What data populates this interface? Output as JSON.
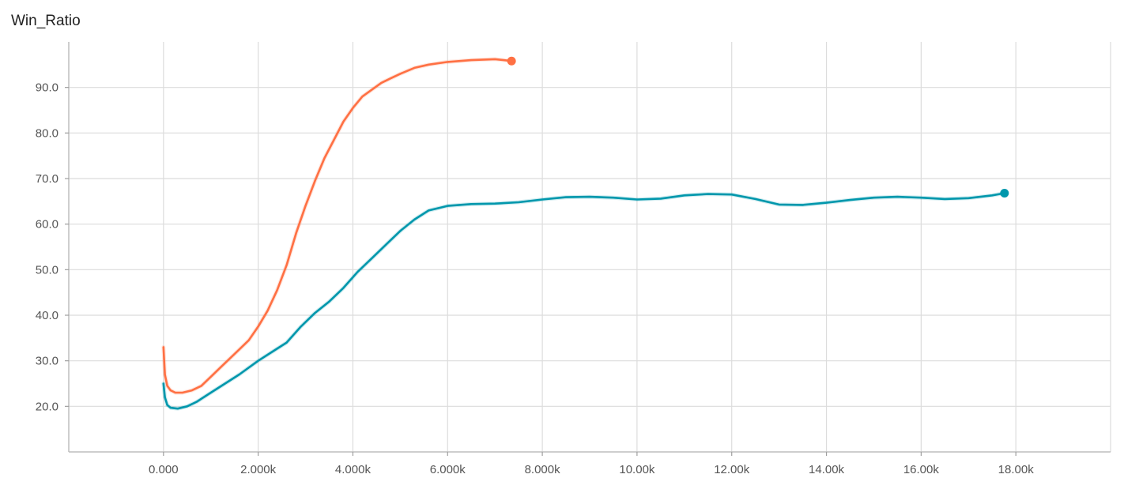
{
  "chart_data": {
    "type": "line",
    "title": "Win_Ratio",
    "xlabel": "",
    "ylabel": "",
    "xlim": [
      -2000,
      20000
    ],
    "ylim": [
      10,
      100
    ],
    "x_ticks": [
      0,
      2000,
      4000,
      6000,
      8000,
      10000,
      12000,
      14000,
      16000,
      18000
    ],
    "x_tick_labels": [
      "0.000",
      "2.000k",
      "4.000k",
      "6.000k",
      "8.000k",
      "10.00k",
      "12.00k",
      "14.00k",
      "16.00k",
      "18.00k"
    ],
    "y_ticks": [
      20,
      30,
      40,
      50,
      60,
      70,
      80,
      90
    ],
    "y_tick_labels": [
      "20.0",
      "30.0",
      "40.0",
      "50.0",
      "60.0",
      "70.0",
      "80.0",
      "90.0"
    ],
    "grid": true,
    "legend": "none",
    "series": [
      {
        "color": "#ff7043",
        "x": [
          0,
          30,
          80,
          150,
          250,
          400,
          600,
          800,
          1000,
          1200,
          1400,
          1600,
          1800,
          2000,
          2200,
          2400,
          2600,
          2800,
          3000,
          3200,
          3400,
          3600,
          3800,
          4000,
          4200,
          4400,
          4600,
          4800,
          5000,
          5300,
          5600,
          6000,
          6500,
          7000,
          7350
        ],
        "y": [
          33,
          27,
          24.5,
          23.5,
          23,
          23,
          23.5,
          24.5,
          26.5,
          28.5,
          30.5,
          32.5,
          34.5,
          37.5,
          41,
          45.5,
          51,
          58,
          64,
          69.5,
          74.5,
          78.5,
          82.5,
          85.5,
          88,
          89.5,
          91,
          92,
          93,
          94.3,
          95,
          95.6,
          96,
          96.2,
          95.8
        ]
      },
      {
        "color": "#0097ac",
        "x": [
          0,
          30,
          80,
          150,
          300,
          500,
          700,
          1000,
          1300,
          1600,
          2000,
          2300,
          2600,
          2900,
          3200,
          3500,
          3800,
          4100,
          4400,
          4700,
          5000,
          5300,
          5600,
          6000,
          6500,
          7000,
          7500,
          8000,
          8500,
          9000,
          9500,
          10000,
          10500,
          11000,
          11500,
          12000,
          12500,
          13000,
          13500,
          14000,
          14500,
          15000,
          15500,
          16000,
          16500,
          17000,
          17500,
          17760
        ],
        "y": [
          25,
          22,
          20.3,
          19.7,
          19.5,
          20,
          21,
          23,
          25,
          27,
          30,
          32,
          34,
          37.5,
          40.5,
          43,
          46,
          49.5,
          52.5,
          55.5,
          58.5,
          61,
          63,
          64,
          64.4,
          64.5,
          64.8,
          65.4,
          65.9,
          66,
          65.8,
          65.4,
          65.6,
          66.3,
          66.6,
          66.5,
          65.5,
          64.3,
          64.2,
          64.7,
          65.3,
          65.8,
          66,
          65.8,
          65.5,
          65.7,
          66.3,
          66.8
        ]
      }
    ]
  }
}
